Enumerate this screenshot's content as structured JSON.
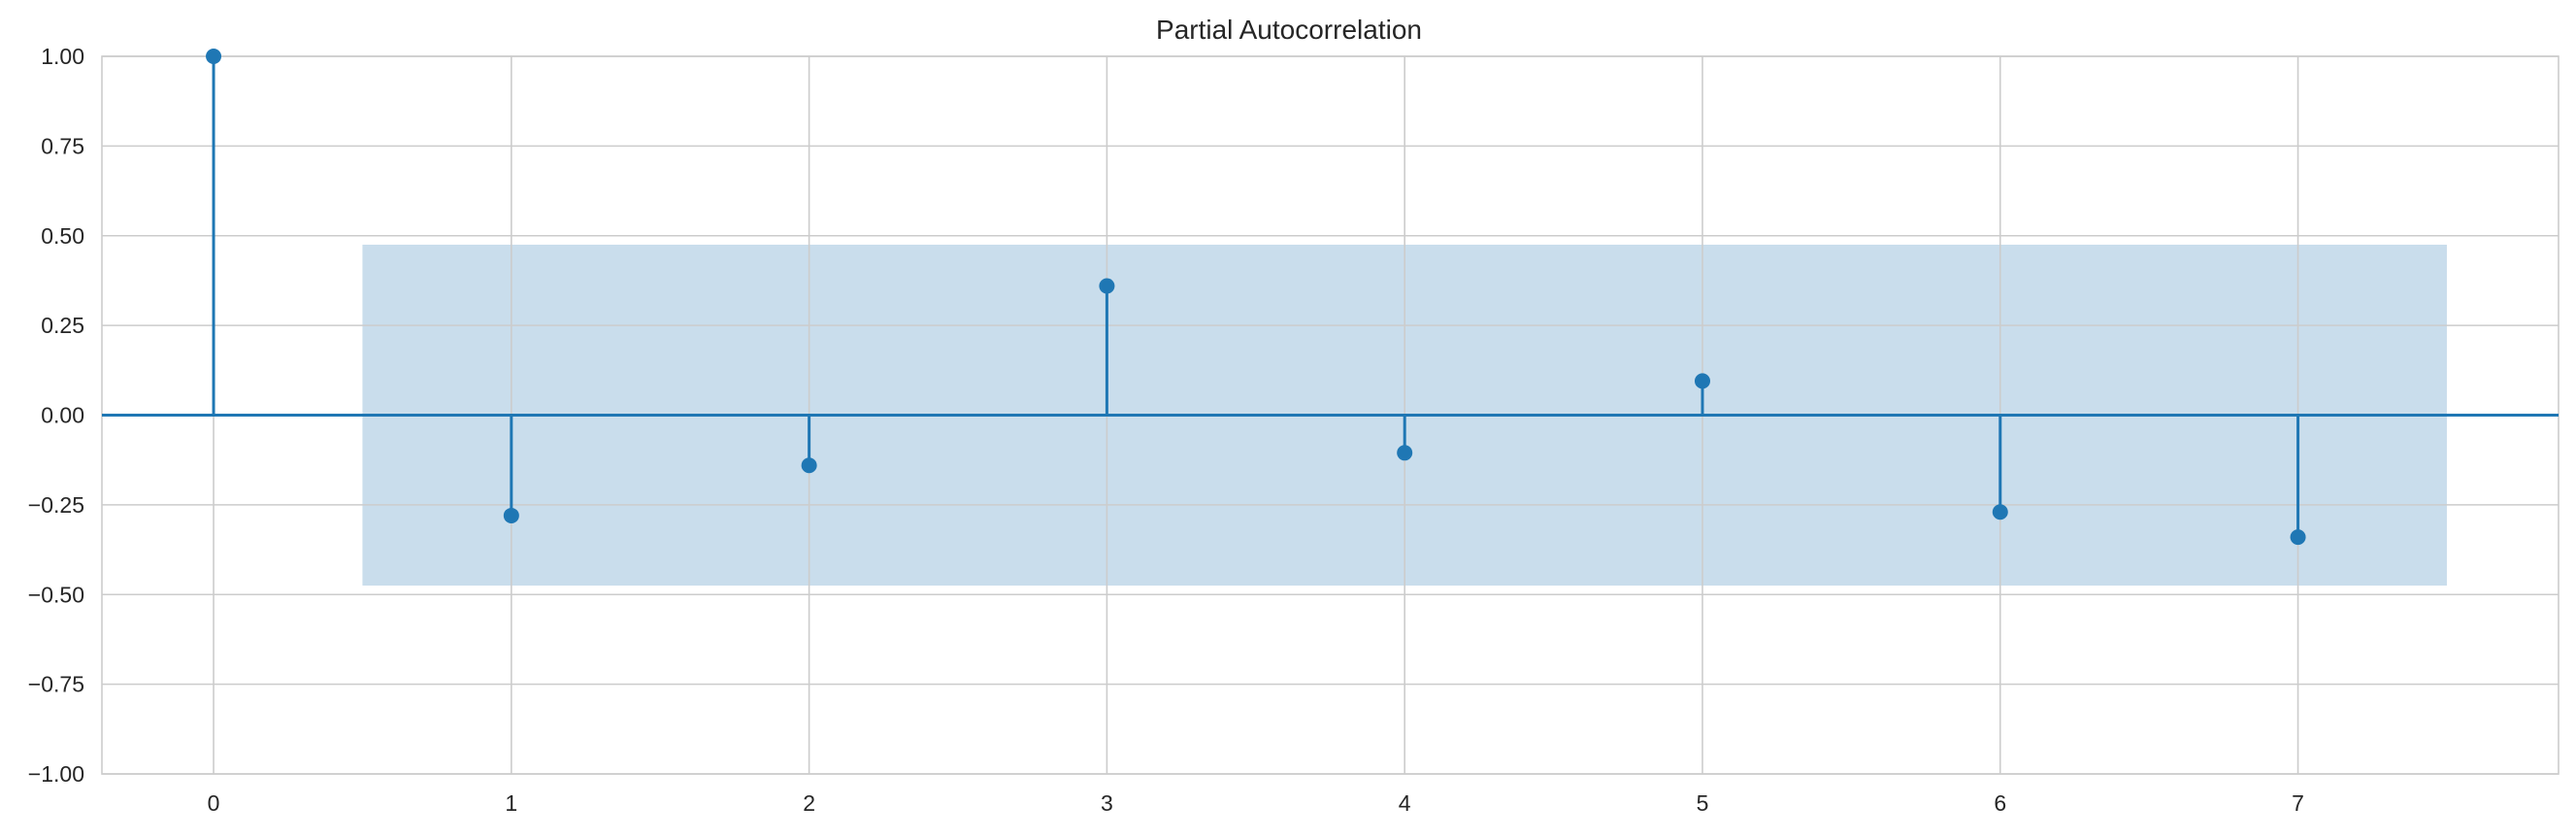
{
  "chart_data": {
    "type": "stem",
    "title": "Partial Autocorrelation",
    "xlabel": "",
    "ylabel": "",
    "x": [
      0,
      1,
      2,
      3,
      4,
      5,
      6,
      7
    ],
    "values": [
      1.0,
      -0.28,
      -0.14,
      0.36,
      -0.105,
      0.095,
      -0.27,
      -0.34
    ],
    "confidence_interval": {
      "x_from": 0.5,
      "x_to": 7.5,
      "lower": -0.475,
      "upper": 0.475
    },
    "xlim": [
      -0.375,
      7.875
    ],
    "ylim": [
      -1.0,
      1.0
    ],
    "x_ticks": [
      "0",
      "1",
      "2",
      "3",
      "4",
      "5",
      "6",
      "7"
    ],
    "y_ticks": [
      "1.00",
      "0.75",
      "0.50",
      "0.25",
      "0.00",
      "−0.25",
      "−0.50",
      "−0.75",
      "−1.00"
    ],
    "y_tick_values": [
      1.0,
      0.75,
      0.5,
      0.25,
      0.0,
      -0.25,
      -0.5,
      -0.75,
      -1.0
    ],
    "grid": true,
    "legend": "none",
    "colors": {
      "stem": "#1f77b4",
      "band": "#c6dbeb",
      "grid": "#cccccc",
      "axis_text": "#262626",
      "spine": "#cccccc"
    }
  }
}
